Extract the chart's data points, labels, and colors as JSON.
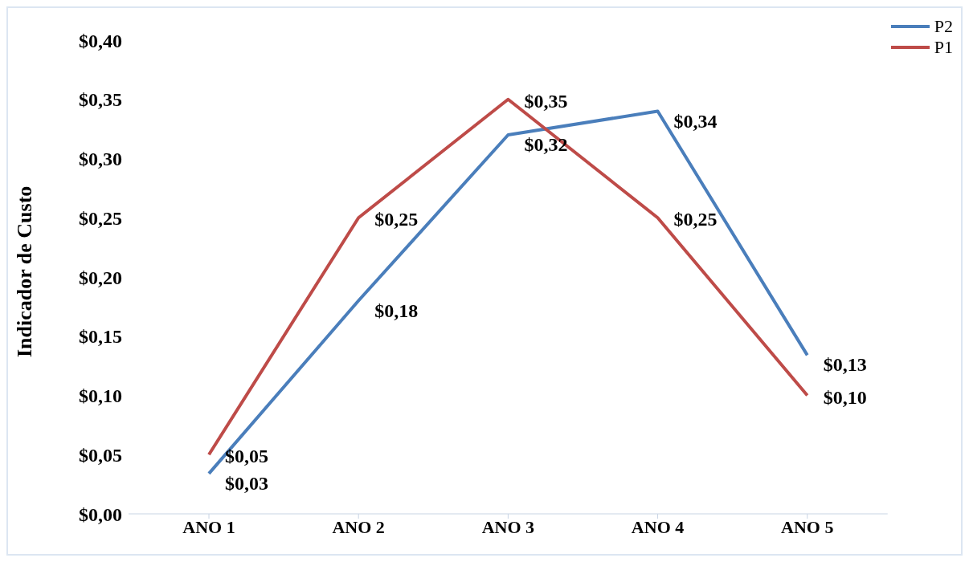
{
  "chart_data": {
    "type": "line",
    "ylabel": "Indicador de Custo",
    "categories": [
      "ANO 1",
      "ANO 2",
      "ANO 3",
      "ANO 4",
      "ANO 5"
    ],
    "series": [
      {
        "name": "P2",
        "color": "#4a7ebb",
        "values": [
          0.034,
          0.18,
          0.32,
          0.34,
          0.134
        ],
        "value_labels": [
          "$0,03",
          "$0,18",
          "$0,32",
          "$0,34",
          "$0,13"
        ]
      },
      {
        "name": "P1",
        "color": "#be4b48",
        "values": [
          0.05,
          0.25,
          0.35,
          0.25,
          0.1
        ],
        "value_labels": [
          "$0,05",
          "$0,25",
          "$0,35",
          "$0,25",
          "$0,10"
        ]
      }
    ],
    "ylim": [
      0,
      0.4
    ],
    "yticks": [
      {
        "value": 0,
        "label": "$0,00"
      },
      {
        "value": 0.05,
        "label": "$0,05"
      },
      {
        "value": 0.1,
        "label": "$0,10"
      },
      {
        "value": 0.15,
        "label": "$0,15"
      },
      {
        "value": 0.2,
        "label": "$0,20"
      },
      {
        "value": 0.25,
        "label": "$0,25"
      },
      {
        "value": 0.3,
        "label": "$0,30"
      },
      {
        "value": 0.35,
        "label": "$0,35"
      },
      {
        "value": 0.4,
        "label": "$0,40"
      }
    ],
    "legend": "top right",
    "marker": "none",
    "line_style": "solid"
  }
}
